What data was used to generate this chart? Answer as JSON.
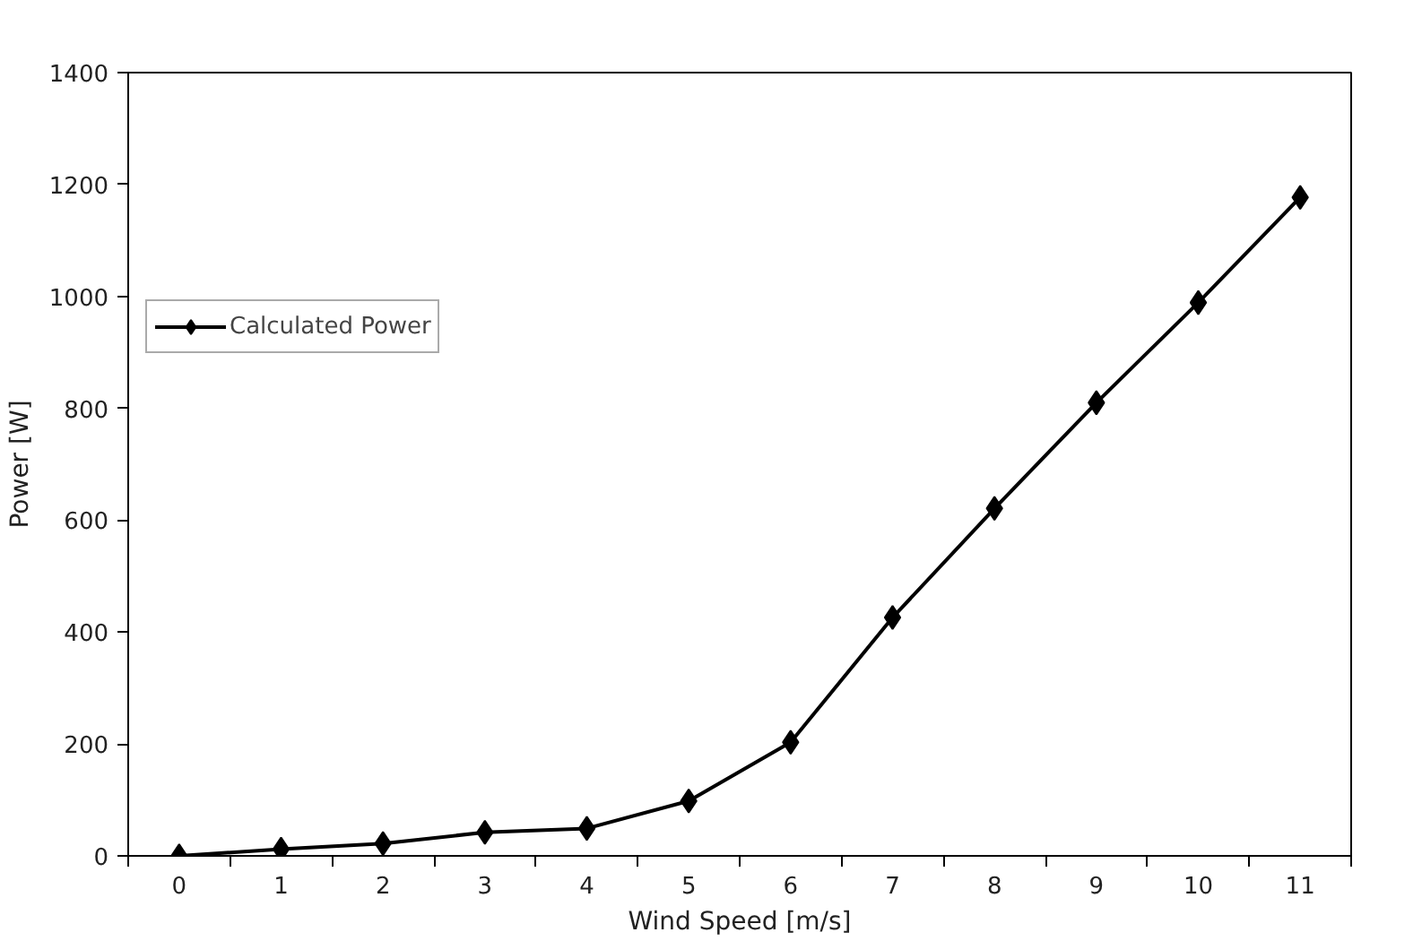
{
  "chart_data": {
    "type": "line",
    "xlabel": "Wind Speed [m/s]",
    "ylabel": "Power [W]",
    "categories": [
      "0",
      "1",
      "2",
      "3",
      "4",
      "5",
      "6",
      "7",
      "8",
      "9",
      "10",
      "11"
    ],
    "series": [
      {
        "name": "Calculated Power",
        "color": "#000000",
        "values": [
          0,
          12,
          22,
          42,
          49,
          98,
          203,
          426,
          621,
          810,
          989,
          1177
        ]
      }
    ],
    "ylim": [
      0,
      1400
    ],
    "yticks": [
      0,
      200,
      400,
      600,
      800,
      1000,
      1200,
      1400
    ],
    "grid": false,
    "legend": "top left",
    "marker": "diamond",
    "line_style": "solid"
  }
}
